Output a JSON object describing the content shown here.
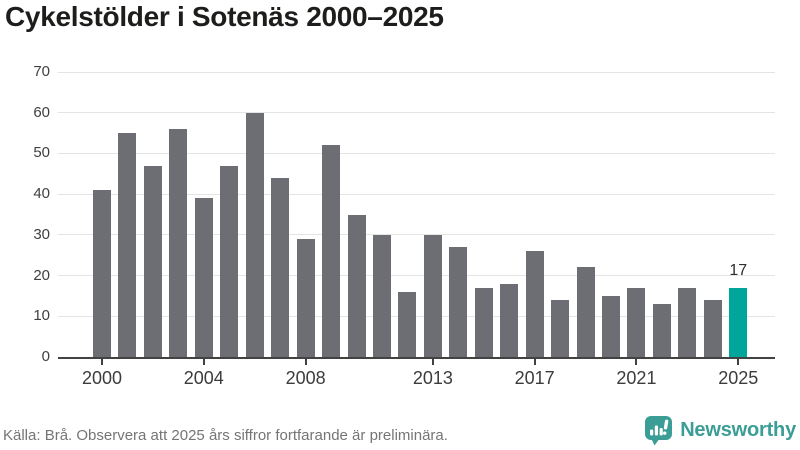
{
  "title": "Cykelstölder i Sotenäs 2000–2025",
  "chart_data": {
    "type": "bar",
    "categories": [
      2000,
      2001,
      2002,
      2003,
      2004,
      2005,
      2006,
      2007,
      2008,
      2009,
      2010,
      2011,
      2012,
      2013,
      2014,
      2015,
      2016,
      2017,
      2018,
      2019,
      2020,
      2021,
      2022,
      2023,
      2024,
      2025
    ],
    "values": [
      41,
      55,
      47,
      56,
      39,
      47,
      60,
      44,
      29,
      52,
      35,
      30,
      16,
      30,
      27,
      17,
      18,
      26,
      14,
      22,
      15,
      17,
      13,
      17,
      14,
      17
    ],
    "title": "Cykelstölder i Sotenäs 2000–2025",
    "xlabel": "",
    "ylabel": "",
    "ylim": [
      0,
      70
    ],
    "y_ticks": [
      0,
      10,
      20,
      30,
      40,
      50,
      60,
      70
    ],
    "x_tick_years": [
      2000,
      2004,
      2008,
      2013,
      2017,
      2021,
      2025
    ],
    "x_tick_labels": [
      "2000",
      "2004",
      "2008",
      "2013",
      "2017",
      "2021",
      "2025"
    ],
    "grid": true,
    "legend": "none",
    "bar_color": "#6d6d74",
    "highlight_color": "#00a69c",
    "highlight_index": 25,
    "highlight_value_label": "17",
    "note": "2025 bar highlighted in teal with value label 17"
  },
  "footer": {
    "source": "Källa: Brå. Observera att 2025 års siffror fortfarande är preliminära.",
    "brand": "Newsworthy",
    "brand_color": "#3b9e96"
  }
}
